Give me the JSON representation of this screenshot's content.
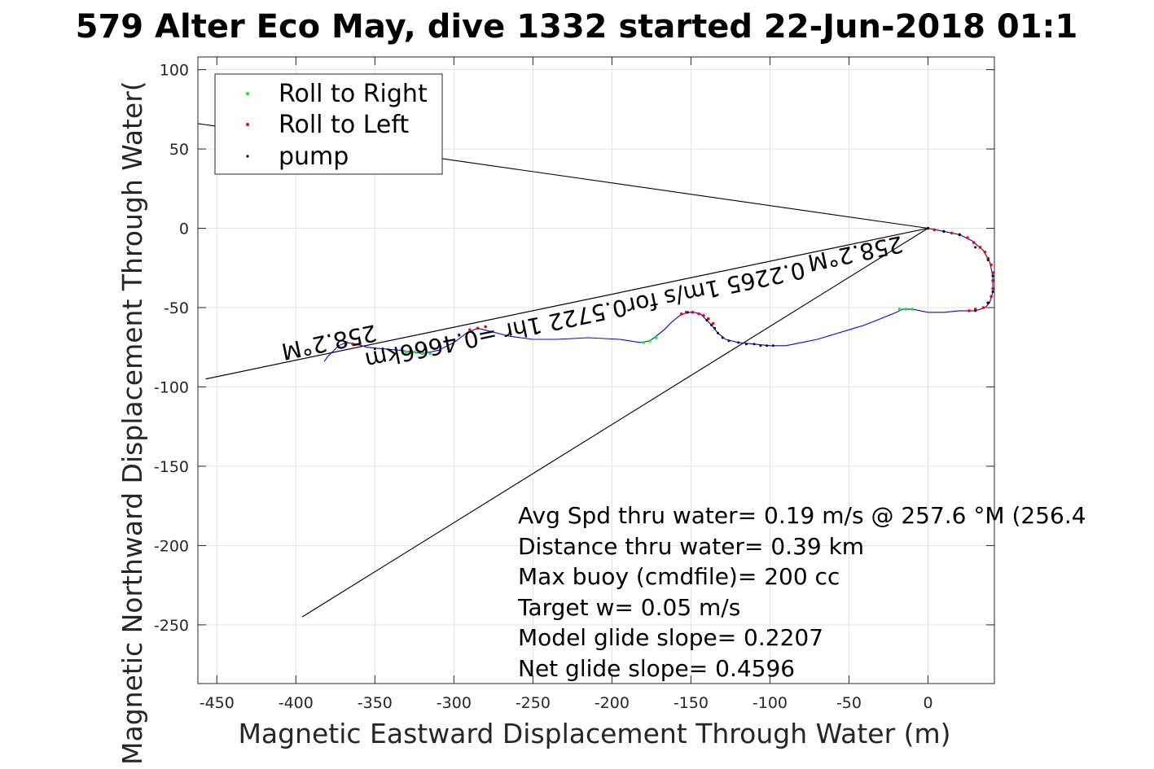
{
  "chart_data": {
    "type": "line",
    "title": "579 Alter Eco May, dive 1332 started 22-Jun-2018 01:1",
    "xlabel": "Magnetic Eastward Displacement Through Water (m)",
    "ylabel": "Magnetic Northward Displacement Through Water(",
    "xlim": [
      -462,
      42
    ],
    "ylim": [
      -287,
      108
    ],
    "xticks": [
      -450,
      -400,
      -350,
      -300,
      -250,
      -200,
      -150,
      -100,
      -50,
      0
    ],
    "yticks": [
      100,
      50,
      0,
      -50,
      -100,
      -150,
      -200,
      -250
    ],
    "grid": true,
    "legend_placement": "top-left",
    "legend": [
      {
        "label": "Roll to Right",
        "color": "#00ff00"
      },
      {
        "label": "Roll to Left",
        "color": "#ff0000"
      },
      {
        "label": "pump",
        "color": "#000000"
      }
    ],
    "track": {
      "color": "#0000ff",
      "points": [
        [
          0,
          0
        ],
        [
          10,
          -2
        ],
        [
          20,
          -4
        ],
        [
          28,
          -8
        ],
        [
          35,
          -14
        ],
        [
          39,
          -21
        ],
        [
          41,
          -30
        ],
        [
          41,
          -40
        ],
        [
          39,
          -47
        ],
        [
          36,
          -50
        ],
        [
          30,
          -52
        ],
        [
          20,
          -52
        ],
        [
          10,
          -53
        ],
        [
          0,
          -53
        ],
        [
          -10,
          -51
        ],
        [
          -16,
          -51
        ],
        [
          -20,
          -53
        ],
        [
          -30,
          -57
        ],
        [
          -40,
          -61
        ],
        [
          -50,
          -64
        ],
        [
          -60,
          -67
        ],
        [
          -70,
          -70
        ],
        [
          -80,
          -72
        ],
        [
          -90,
          -74
        ],
        [
          -100,
          -74
        ],
        [
          -110,
          -73
        ],
        [
          -120,
          -72
        ],
        [
          -128,
          -70
        ],
        [
          -133,
          -66
        ],
        [
          -137,
          -61
        ],
        [
          -141,
          -57
        ],
        [
          -144,
          -54
        ],
        [
          -148,
          -53
        ],
        [
          -152,
          -53
        ],
        [
          -157,
          -55
        ],
        [
          -162,
          -59
        ],
        [
          -167,
          -64
        ],
        [
          -172,
          -68
        ],
        [
          -176,
          -71
        ],
        [
          -182,
          -72
        ],
        [
          -195,
          -70
        ],
        [
          -215,
          -69
        ],
        [
          -235,
          -70
        ],
        [
          -250,
          -70
        ],
        [
          -265,
          -68
        ],
        [
          -277,
          -65
        ],
        [
          -285,
          -63
        ],
        [
          -292,
          -66
        ],
        [
          -300,
          -72
        ],
        [
          -310,
          -77
        ],
        [
          -320,
          -79
        ],
        [
          -333,
          -77
        ],
        [
          -345,
          -76
        ],
        [
          -355,
          -75
        ],
        [
          -362,
          -73
        ],
        [
          -368,
          -72
        ],
        [
          -373,
          -74
        ],
        [
          -377,
          -78
        ],
        [
          -380,
          -81
        ],
        [
          -382,
          -84
        ]
      ]
    },
    "roll_right": [
      [
        -10,
        -51
      ],
      [
        -14,
        -51
      ],
      [
        -18,
        -51
      ],
      [
        -172,
        -69
      ],
      [
        -176,
        -71
      ],
      [
        -180,
        -72
      ],
      [
        -315,
        -79
      ],
      [
        -320,
        -79
      ],
      [
        -325,
        -78
      ],
      [
        -330,
        -78
      ]
    ],
    "roll_left": [
      [
        0,
        0
      ],
      [
        4,
        -1
      ],
      [
        10,
        -2
      ],
      [
        15,
        -3
      ],
      [
        20,
        -4
      ],
      [
        25,
        -6
      ],
      [
        29,
        -9
      ],
      [
        33,
        -12
      ],
      [
        36,
        -15
      ],
      [
        38,
        -19
      ],
      [
        40,
        -23
      ],
      [
        41,
        -28
      ],
      [
        41,
        -33
      ],
      [
        41,
        -38
      ],
      [
        40,
        -43
      ],
      [
        38,
        -47
      ],
      [
        35,
        -50
      ],
      [
        30,
        -51
      ],
      [
        26,
        -52
      ],
      [
        -136,
        -60
      ],
      [
        -139,
        -57
      ],
      [
        -142,
        -55
      ],
      [
        -145,
        -54
      ],
      [
        -149,
        -53
      ],
      [
        -153,
        -53
      ],
      [
        -156,
        -54
      ],
      [
        -280,
        -62
      ],
      [
        -285,
        -63
      ],
      [
        -290,
        -64
      ],
      [
        -360,
        -73
      ],
      [
        -364,
        -73
      ],
      [
        -368,
        -72
      ]
    ],
    "pump": [
      [
        0,
        0
      ],
      [
        10,
        -2
      ],
      [
        20,
        -4
      ],
      [
        30,
        -12
      ],
      [
        38,
        -20
      ],
      [
        41,
        -30
      ],
      [
        41,
        -40
      ],
      [
        38,
        -47
      ],
      [
        30,
        -52
      ],
      [
        -98,
        -74
      ],
      [
        -102,
        -74
      ],
      [
        -106,
        -74
      ],
      [
        -110,
        -73
      ],
      [
        -115,
        -73
      ],
      [
        -120,
        -72
      ],
      [
        -126,
        -71
      ],
      [
        -130,
        -69
      ],
      [
        -133,
        -66
      ],
      [
        -135,
        -63
      ],
      [
        -137,
        -61
      ],
      [
        -140,
        -58
      ],
      [
        -152,
        -53
      ],
      [
        -345,
        -76
      ],
      [
        -350,
        -76
      ]
    ],
    "reference_lines": [
      {
        "color": "#000000",
        "points": [
          [
            0,
            0
          ],
          [
            -462,
            66
          ]
        ]
      },
      {
        "color": "#000000",
        "points": [
          [
            0,
            0
          ],
          [
            -396,
            -245
          ]
        ]
      },
      {
        "color": "#ff00ff",
        "points": [
          [
            0,
            0
          ],
          [
            -457,
            -95
          ]
        ]
      },
      {
        "color": "#000000",
        "points": [
          [
            0,
            0
          ],
          [
            -457,
            -95
          ]
        ]
      }
    ],
    "rotated_labels": [
      {
        "text": "258.2°M",
        "x": -47,
        "y": -11
      },
      {
        "text": "0.2265 1m/s for0.5722 1hr =0.4666km",
        "x": -218,
        "y": -50
      },
      {
        "text": "258.2°M",
        "x": -380,
        "y": -67
      }
    ],
    "annotations": [
      "Avg Spd thru water=  0.19 m/s @ 257.6 °M (256.4",
      "Distance thru water=  0.39 km",
      "Max buoy (cmdfile)= 200 cc",
      "Target w= 0.05 m/s",
      "Model glide slope= 0.2207",
      "Net glide slope= 0.4596"
    ]
  }
}
